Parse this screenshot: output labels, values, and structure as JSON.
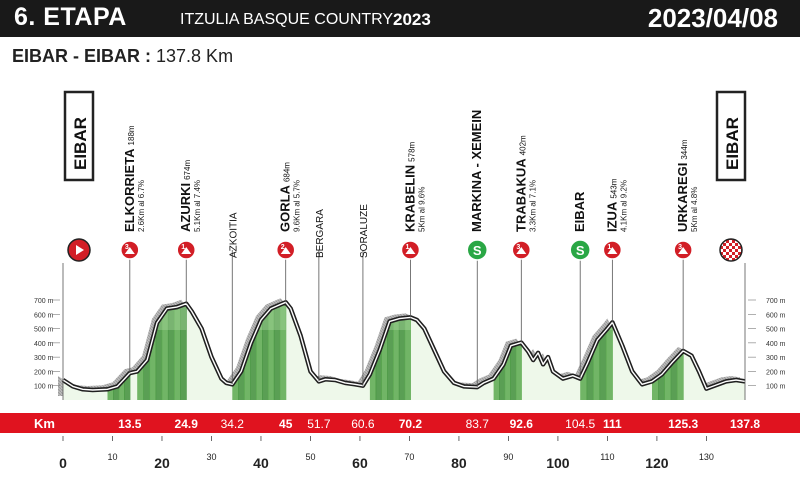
{
  "header": {
    "stage": "6. ETAPA",
    "race": "ITZULIA BASQUE COUNTRY",
    "year": "2023",
    "date": "2023/04/08"
  },
  "route": {
    "name": "EIBAR - EIBAR :",
    "distance": "137.8 Km"
  },
  "colors": {
    "header_bg": "#191919",
    "km_band": "#e0131f",
    "climb_green": "#3f8f3a",
    "climb_light": "#b5dca8",
    "profile_fill": "#eef8ea",
    "sprint_green": "#2aa745",
    "kom_red": "#d21e26"
  },
  "chart_data": {
    "type": "area",
    "title": "",
    "xlabel": "",
    "ylabel": "",
    "x_unit_label": "Km",
    "xlim": [
      0,
      137.8
    ],
    "ylim": [
      0,
      700
    ],
    "x_ticks": [
      0,
      10,
      20,
      30,
      40,
      50,
      60,
      70,
      80,
      90,
      100,
      110,
      120,
      130
    ],
    "y_ticks": [
      "100 m",
      "200 m",
      "300 m",
      "400 m",
      "500 m",
      "600 m",
      "700 m"
    ],
    "profile": {
      "km": [
        0,
        2,
        4,
        6,
        9,
        11,
        12.2,
        13.5,
        15,
        17,
        19,
        21,
        23,
        24.9,
        26,
        28,
        30,
        32,
        33,
        34.2,
        36,
        38,
        40,
        42,
        44,
        45,
        46,
        48,
        50,
        51.7,
        53,
        55,
        57,
        59,
        60.6,
        62,
        64,
        66,
        68,
        70.2,
        71.5,
        73,
        75,
        77,
        79,
        81,
        83.7,
        85,
        87,
        89,
        90.5,
        92.6,
        94,
        95,
        96,
        97,
        98,
        99,
        101,
        103,
        104.5,
        106,
        108,
        110,
        111,
        113,
        115,
        117,
        119,
        121,
        123,
        125.3,
        127,
        128.5,
        130,
        132,
        134,
        136,
        137.8
      ],
      "elevation_m": [
        140,
        95,
        75,
        70,
        75,
        95,
        140,
        188,
        200,
        280,
        540,
        640,
        650,
        674,
        620,
        500,
        300,
        150,
        120,
        110,
        200,
        400,
        560,
        640,
        670,
        684,
        640,
        450,
        200,
        130,
        145,
        140,
        120,
        110,
        100,
        180,
        350,
        550,
        570,
        578,
        560,
        500,
        350,
        200,
        120,
        95,
        90,
        120,
        150,
        250,
        380,
        402,
        340,
        280,
        330,
        250,
        300,
        200,
        150,
        170,
        150,
        260,
        420,
        500,
        543,
        380,
        200,
        110,
        130,
        180,
        260,
        344,
        310,
        200,
        80,
        105,
        130,
        140,
        130
      ]
    },
    "km_markers": [
      {
        "km": 13.5,
        "label": "13.5"
      },
      {
        "km": 24.9,
        "label": "24.9"
      },
      {
        "km": 34.2,
        "label": "34.2"
      },
      {
        "km": 45,
        "label": "45"
      },
      {
        "km": 51.7,
        "label": "51.7"
      },
      {
        "km": 60.6,
        "label": "60.6"
      },
      {
        "km": 70.2,
        "label": "70.2"
      },
      {
        "km": 83.7,
        "label": "83.7"
      },
      {
        "km": 92.6,
        "label": "92.6"
      },
      {
        "km": 104.5,
        "label": "104.5"
      },
      {
        "km": 111,
        "label": "111"
      },
      {
        "km": 125.3,
        "label": "125.3"
      },
      {
        "km": 137.8,
        "label": "137.8"
      }
    ],
    "points": [
      {
        "km": 0,
        "name": "EIBAR",
        "kind": "start",
        "boxed": true
      },
      {
        "km": 13.5,
        "name": "ELKORRIETA",
        "elevation": "188m",
        "detail": "2.6Km al 6.7%",
        "kind": "kom",
        "cat": "3"
      },
      {
        "km": 24.9,
        "name": "AZURKI",
        "elevation": "674m",
        "detail": "5.1Km al 7.4%",
        "kind": "kom",
        "cat": "1"
      },
      {
        "km": 34.2,
        "name": "AZKOITIA",
        "kind": "town"
      },
      {
        "km": 45,
        "name": "GORLA",
        "elevation": "684m",
        "detail": "9.6Km al 5.7%",
        "kind": "kom",
        "cat": "2"
      },
      {
        "km": 51.7,
        "name": "BERGARA",
        "kind": "town"
      },
      {
        "km": 60.6,
        "name": "SORALUZE",
        "kind": "town"
      },
      {
        "km": 70.2,
        "name": "KRABELIN",
        "elevation": "578m",
        "detail": "5Km al 9.6%",
        "kind": "kom",
        "cat": "1"
      },
      {
        "km": 83.7,
        "name": "MARKINA - XEMEIN",
        "kind": "sprint",
        "cat": "S"
      },
      {
        "km": 92.6,
        "name": "TRABAKUA",
        "elevation": "402m",
        "detail": "3.3Km al 7.1%",
        "kind": "kom",
        "cat": "3"
      },
      {
        "km": 104.5,
        "name": "EIBAR",
        "kind": "sprint",
        "cat": "S"
      },
      {
        "km": 111,
        "name": "IZUA",
        "elevation": "543m",
        "detail": "4.1Km al 9.2%",
        "kind": "kom",
        "cat": "1"
      },
      {
        "km": 125.3,
        "name": "URKAREGI",
        "elevation": "344m",
        "detail": "5Km al 4.8%",
        "kind": "kom",
        "cat": "3"
      },
      {
        "km": 137.8,
        "name": "EIBAR",
        "kind": "finish",
        "boxed": true
      }
    ],
    "climbs": [
      [
        9,
        13.5
      ],
      [
        15,
        24.9
      ],
      [
        34.2,
        45
      ],
      [
        62,
        70.2
      ],
      [
        87,
        92.6
      ],
      [
        104.5,
        111
      ],
      [
        119,
        125.3
      ]
    ],
    "grid": false,
    "legend": "none"
  }
}
